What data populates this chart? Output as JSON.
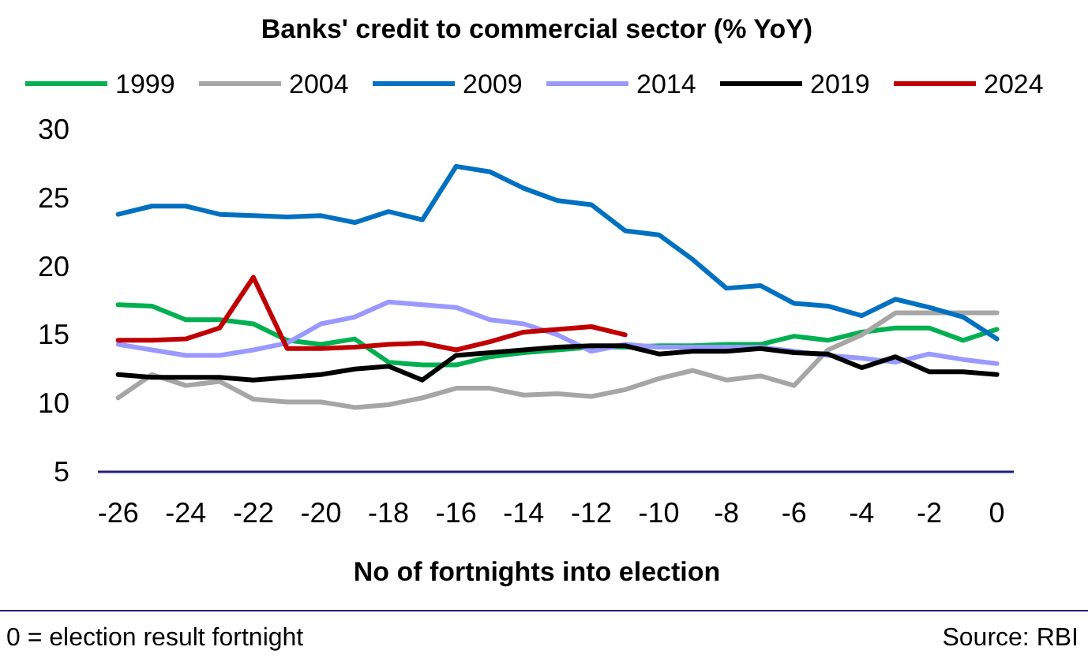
{
  "chart_data": {
    "type": "line",
    "title": "Banks' credit to commercial sector (% YoY)",
    "xlabel": "No of fortnights into election",
    "x": [
      -26,
      -25,
      -24,
      -23,
      -22,
      -21,
      -20,
      -19,
      -18,
      -17,
      -16,
      -15,
      -14,
      -13,
      -12,
      -11,
      -10,
      -9,
      -8,
      -7,
      -6,
      -5,
      -4,
      -3,
      -2,
      -1,
      0
    ],
    "xlim": [
      -26.6,
      0.5
    ],
    "xticks": [
      -26,
      -24,
      -22,
      -20,
      -18,
      -16,
      -14,
      -12,
      -10,
      -8,
      -6,
      -4,
      -2,
      0
    ],
    "ylim": [
      5,
      30
    ],
    "yticks": [
      5,
      10,
      15,
      20,
      25,
      30
    ],
    "grid": false,
    "legend": "top",
    "marker": "none",
    "series": [
      {
        "name": "1999",
        "color": "#00b050",
        "values": [
          17.2,
          17.1,
          16.1,
          16.1,
          15.8,
          14.6,
          14.3,
          14.7,
          13.0,
          12.8,
          12.8,
          13.4,
          13.7,
          13.9,
          14.1,
          14.1,
          14.2,
          14.2,
          14.3,
          14.3,
          14.9,
          14.6,
          15.2,
          15.5,
          15.5,
          14.6,
          15.4
        ]
      },
      {
        "name": "2004",
        "color": "#a6a6a6",
        "values": [
          10.4,
          12.1,
          11.3,
          11.6,
          10.3,
          10.1,
          10.1,
          9.7,
          9.9,
          10.4,
          11.1,
          11.1,
          10.6,
          10.7,
          10.5,
          11.0,
          11.8,
          12.4,
          11.7,
          12.0,
          11.3,
          13.9,
          15.0,
          16.6,
          16.6,
          16.6,
          16.6
        ]
      },
      {
        "name": "2009",
        "color": "#0070c0",
        "values": [
          23.8,
          24.4,
          24.4,
          23.8,
          23.7,
          23.6,
          23.7,
          23.2,
          24.0,
          23.4,
          27.3,
          26.9,
          25.7,
          24.8,
          24.5,
          22.6,
          22.3,
          20.5,
          18.4,
          18.6,
          17.3,
          17.1,
          16.4,
          17.6,
          17.0,
          16.3,
          14.7
        ]
      },
      {
        "name": "2014",
        "color": "#9999ff",
        "values": [
          14.3,
          13.9,
          13.5,
          13.5,
          13.9,
          14.4,
          15.8,
          16.3,
          17.4,
          17.2,
          17.0,
          16.1,
          15.8,
          15.0,
          13.8,
          14.3,
          14.1,
          14.1,
          14.1,
          14.1,
          13.8,
          13.5,
          13.3,
          13.0,
          13.6,
          13.2,
          12.9
        ]
      },
      {
        "name": "2019",
        "color": "#000000",
        "values": [
          12.1,
          11.9,
          11.9,
          11.9,
          11.7,
          11.9,
          12.1,
          12.5,
          12.7,
          11.7,
          13.5,
          13.7,
          13.9,
          14.1,
          14.2,
          14.2,
          13.6,
          13.8,
          13.8,
          14.0,
          13.7,
          13.6,
          12.6,
          13.4,
          12.3,
          12.3,
          12.1
        ]
      },
      {
        "name": "2024",
        "color": "#c00000",
        "values": [
          14.6,
          14.6,
          14.7,
          15.5,
          19.2,
          14.0,
          14.0,
          14.1,
          14.3,
          14.4,
          13.9,
          14.5,
          15.2,
          15.4,
          15.6,
          15.0,
          null,
          null,
          null,
          null,
          null,
          null,
          null,
          null,
          null,
          null,
          null
        ]
      }
    ],
    "annotations": [
      "0 = election result fortnight",
      "Source: RBI"
    ]
  }
}
